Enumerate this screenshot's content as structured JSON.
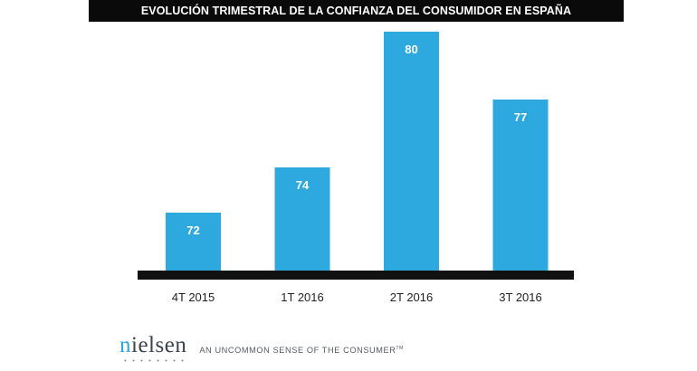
{
  "chart_data": {
    "type": "bar",
    "title": "EVOLUCIÓN TRIMESTRAL DE LA CONFIANZA DEL CONSUMIDOR EN ESPAÑA",
    "categories": [
      "4T 2015",
      "1T 2016",
      "2T 2016",
      "3T 2016"
    ],
    "values": [
      72,
      74,
      80,
      77
    ],
    "data_labels": [
      "72",
      "74",
      "80",
      "77"
    ],
    "xlabel": "",
    "ylabel": "",
    "grid": false,
    "legend": "none",
    "colors": {
      "bar": "#2ea9df",
      "baseline": "#111111",
      "data_label": "#ffffff",
      "tick_label": "#222222"
    }
  },
  "branding": {
    "logo_first_letter": "n",
    "logo_rest": "ielsen",
    "tagline": "AN UNCOMMON SENSE OF THE CONSUMER",
    "trademark": "TM",
    "logo_accent_color": "#2fa4dd"
  }
}
